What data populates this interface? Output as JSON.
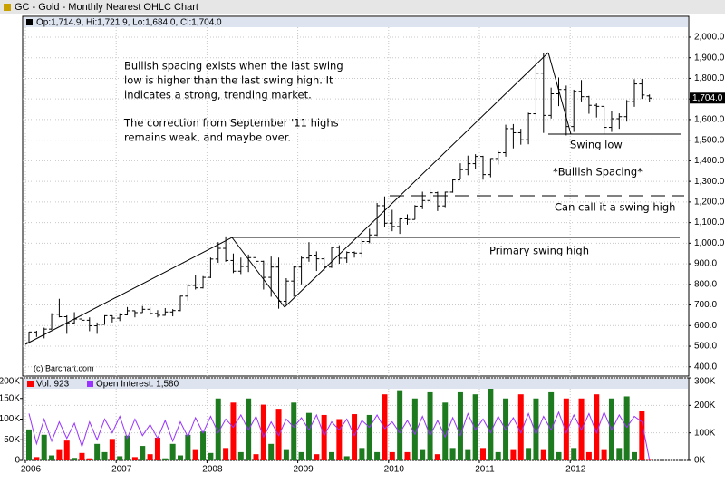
{
  "chart_data": [
    {
      "type": "ohlc",
      "title": "GC - Gold - Monthly Nearest OHLC Chart",
      "subtitle": "Op:1,714.9, Hi:1,721.9, Lo:1,684.0, Cl:1,704.0",
      "source": "(c) Barchart.com",
      "last_label": "1,704.0",
      "annotations": [
        "Bullish spacing exists when the last swing",
        "low is higher than the last swing high.  It",
        "indicates a strong, trending market.",
        "The correction from September '11 highs",
        "remains weak, and maybe over.",
        "Swing low",
        "*Bullish Spacing*",
        "Can call it a swing high",
        "Primary swing high"
      ],
      "color": "#000000",
      "grid": true,
      "ylim": [
        355,
        2101
      ],
      "yticks": [
        {
          "value": 400,
          "label": "400.0"
        },
        {
          "value": 500,
          "label": "500.0"
        },
        {
          "value": 600,
          "label": "600.0"
        },
        {
          "value": 700,
          "label": "700.0"
        },
        {
          "value": 800,
          "label": "800.0"
        },
        {
          "value": 900,
          "label": "900.0"
        },
        {
          "value": 1000,
          "label": "1,000.0"
        },
        {
          "value": 1100,
          "label": "1,100.0"
        },
        {
          "value": 1200,
          "label": "1,200.0"
        },
        {
          "value": 1300,
          "label": "1,300.0"
        },
        {
          "value": 1400,
          "label": "1,400.0"
        },
        {
          "value": 1500,
          "label": "1,500.0"
        },
        {
          "value": 1600,
          "label": "1,600.0"
        },
        {
          "value": 1700,
          "label": "1,700.0"
        },
        {
          "value": 1800,
          "label": "1,800.0"
        },
        {
          "value": 1900,
          "label": "1,900.0"
        },
        {
          "value": 2000,
          "label": "2,000.0"
        }
      ],
      "open": [
        517,
        569,
        564,
        583,
        655,
        643,
        613,
        632,
        626,
        599,
        606,
        648,
        636,
        652,
        672,
        663,
        679,
        659,
        650,
        666,
        673,
        743,
        795,
        783,
        834,
        923,
        975,
        916,
        864,
        887,
        930,
        912,
        834,
        884,
        718,
        816,
        884,
        928,
        942,
        924,
        884,
        979,
        927,
        955,
        952,
        1008,
        1040,
        1182,
        1097,
        1081,
        1118,
        1115,
        1180,
        1207,
        1245,
        1181,
        1248,
        1307,
        1357,
        1386,
        1421,
        1333,
        1411,
        1439,
        1556,
        1536,
        1502,
        1628,
        1825,
        1620,
        1725,
        1746,
        1566,
        1737,
        1711,
        1669,
        1664,
        1562,
        1604,
        1614,
        1687,
        1773,
        1714.9
      ],
      "high": [
        570,
        575,
        590,
        660,
        730,
        650,
        665,
        663,
        640,
        615,
        650,
        650,
        660,
        690,
        673,
        695,
        690,
        675,
        685,
        680,
        745,
        800,
        845,
        840,
        930,
        1005,
        1033,
        950,
        930,
        945,
        990,
        915,
        935,
        930,
        830,
        890,
        935,
        1005,
        960,
        930,
        980,
        990,
        960,
        960,
        1020,
        1070,
        1195,
        1227,
        1162,
        1125,
        1140,
        1185,
        1250,
        1265,
        1250,
        1250,
        1310,
        1388,
        1425,
        1432,
        1424,
        1412,
        1448,
        1575,
        1578,
        1555,
        1633,
        1912,
        1923,
        1755,
        1804,
        1765,
        1745,
        1792,
        1715,
        1678,
        1665,
        1640,
        1630,
        1695,
        1796,
        1798,
        1721.9
      ],
      "low": [
        513,
        545,
        538,
        580,
        640,
        560,
        610,
        612,
        573,
        560,
        604,
        615,
        622,
        650,
        640,
        662,
        652,
        640,
        648,
        645,
        670,
        720,
        775,
        780,
        830,
        905,
        910,
        855,
        850,
        860,
        905,
        775,
        740,
        682,
        700,
        740,
        800,
        910,
        865,
        865,
        880,
        900,
        905,
        930,
        930,
        1000,
        1035,
        1080,
        1058,
        1045,
        1090,
        1115,
        1165,
        1200,
        1156,
        1175,
        1245,
        1310,
        1330,
        1360,
        1308,
        1320,
        1382,
        1420,
        1460,
        1478,
        1480,
        1600,
        1535,
        1605,
        1665,
        1523,
        1540,
        1688,
        1628,
        1610,
        1527,
        1540,
        1555,
        1590,
        1662,
        1700,
        1684.0
      ],
      "close": [
        569,
        564,
        583,
        655,
        643,
        613,
        632,
        626,
        599,
        606,
        648,
        636,
        652,
        672,
        663,
        679,
        659,
        650,
        666,
        673,
        743,
        795,
        783,
        834,
        923,
        975,
        916,
        864,
        887,
        930,
        912,
        834,
        884,
        718,
        816,
        884,
        928,
        942,
        924,
        884,
        979,
        927,
        955,
        952,
        1008,
        1040,
        1182,
        1097,
        1081,
        1118,
        1115,
        1180,
        1207,
        1245,
        1181,
        1248,
        1307,
        1357,
        1386,
        1421,
        1333,
        1411,
        1439,
        1556,
        1536,
        1502,
        1628,
        1825,
        1620,
        1725,
        1746,
        1566,
        1737,
        1711,
        1669,
        1664,
        1562,
        1604,
        1614,
        1687,
        1773,
        1719,
        1704.0
      ]
    },
    {
      "type": "volume",
      "categories": [
        "2006",
        null,
        null,
        null,
        null,
        null,
        null,
        null,
        null,
        null,
        null,
        null,
        "2007",
        null,
        null,
        null,
        null,
        null,
        null,
        null,
        null,
        null,
        null,
        null,
        "2008",
        null,
        null,
        null,
        null,
        null,
        null,
        null,
        null,
        null,
        null,
        null,
        "2009",
        null,
        null,
        null,
        null,
        null,
        null,
        null,
        null,
        null,
        null,
        null,
        "2010",
        null,
        null,
        null,
        null,
        null,
        null,
        null,
        null,
        null,
        null,
        null,
        "2011",
        null,
        null,
        null,
        null,
        null,
        null,
        null,
        null,
        null,
        null,
        null,
        "2012",
        null,
        null,
        null,
        null,
        null,
        null,
        null,
        null,
        null,
        null
      ],
      "ylim": [
        0,
        200000
      ],
      "yticks": [
        0,
        {
          "value": 50000,
          "label": "50K"
        },
        {
          "value": 100000,
          "label": "100K"
        },
        {
          "value": 150000,
          "label": "150K"
        },
        {
          "value": 200000,
          "label": "200K"
        }
      ],
      "y2lim": [
        0,
        300000
      ],
      "y2ticks": [
        {
          "value": 0,
          "label": "0K"
        },
        {
          "value": 100000,
          "label": "100K"
        },
        {
          "value": 200000,
          "label": "200K"
        },
        {
          "value": 300000,
          "label": "300K"
        }
      ],
      "series": [
        {
          "name": "Vol: 923",
          "color": "#ff0000",
          "up_color": "#1e7a1e",
          "down_color": "#ff0000",
          "values": [
            75000,
            8000,
            62000,
            12000,
            25000,
            48000,
            6000,
            18000,
            5000,
            40000,
            20000,
            52000,
            10000,
            60000,
            8000,
            35000,
            15000,
            55000,
            5000,
            40000,
            12000,
            62000,
            25000,
            70000,
            18000,
            150000,
            30000,
            140000,
            20000,
            150000,
            15000,
            135000,
            40000,
            125000,
            25000,
            140000,
            20000,
            115000,
            15000,
            110000,
            20000,
            100000,
            10000,
            112000,
            30000,
            110000,
            20000,
            160000,
            20000,
            170000,
            20000,
            150000,
            25000,
            165000,
            15000,
            140000,
            30000,
            165000,
            25000,
            160000,
            30000,
            175000,
            20000,
            150000,
            25000,
            160000,
            30000,
            150000,
            25000,
            165000,
            20000,
            150000,
            30000,
            150000,
            20000,
            160000,
            25000,
            150000,
            30000,
            155000,
            20000,
            120000,
            923
          ]
        },
        {
          "name": "Open Interest: 1,580",
          "color": "#9933ff",
          "axis": "y2",
          "values": [
            170000,
            60000,
            150000,
            70000,
            140000,
            80000,
            135000,
            50000,
            140000,
            75000,
            150000,
            100000,
            160000,
            80000,
            150000,
            90000,
            130000,
            80000,
            145000,
            70000,
            140000,
            85000,
            155000,
            100000,
            160000,
            100000,
            150000,
            120000,
            165000,
            110000,
            160000,
            85000,
            140000,
            90000,
            150000,
            120000,
            155000,
            110000,
            165000,
            90000,
            140000,
            110000,
            150000,
            90000,
            145000,
            120000,
            165000,
            115000,
            140000,
            100000,
            145000,
            95000,
            160000,
            90000,
            145000,
            85000,
            155000,
            90000,
            170000,
            110000,
            150000,
            100000,
            160000,
            110000,
            155000,
            100000,
            170000,
            95000,
            160000,
            110000,
            175000,
            100000,
            165000,
            110000,
            170000,
            100000,
            175000,
            110000,
            165000,
            120000,
            160000,
            140000,
            1580
          ]
        }
      ]
    }
  ]
}
